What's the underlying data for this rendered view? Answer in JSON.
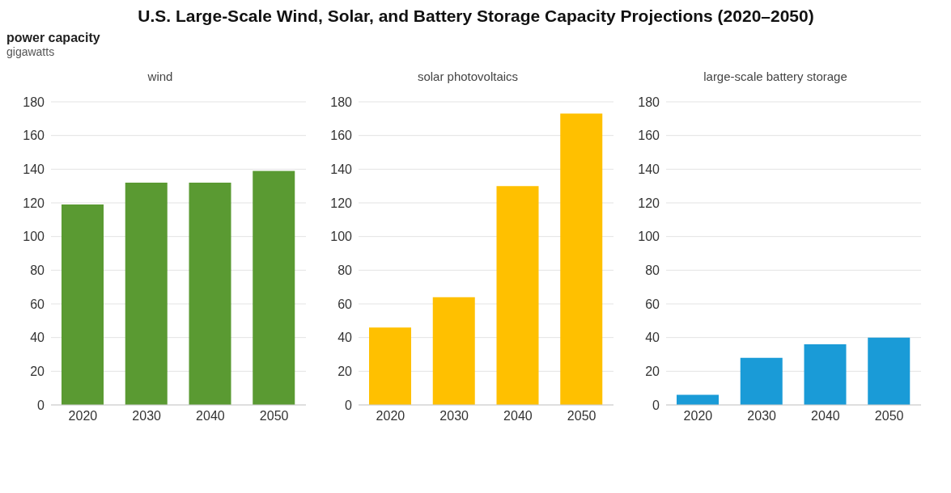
{
  "chart_data": [
    {
      "type": "bar",
      "title": "wind",
      "annotations": [
        "U.S. Large-Scale Wind, Solar, and Battery Storage Capacity Projections (2020–2050)",
        "power capacity",
        "gigawatts"
      ],
      "categories": [
        "2020",
        "2030",
        "2040",
        "2050"
      ],
      "values": [
        119,
        132,
        132,
        139
      ],
      "color": "#5a9a32",
      "ylim": [
        0,
        180
      ],
      "yticks": [
        0,
        20,
        40,
        60,
        80,
        100,
        120,
        140,
        160,
        180
      ],
      "grid": "y"
    },
    {
      "type": "bar",
      "title": "solar photovoltaics",
      "categories": [
        "2020",
        "2030",
        "2040",
        "2050"
      ],
      "values": [
        46,
        64,
        130,
        173
      ],
      "color": "#ffc000",
      "ylim": [
        0,
        180
      ],
      "yticks": [
        0,
        20,
        40,
        60,
        80,
        100,
        120,
        140,
        160,
        180
      ],
      "grid": "y"
    },
    {
      "type": "bar",
      "title": "large-scale battery storage",
      "categories": [
        "2020",
        "2030",
        "2040",
        "2050"
      ],
      "values": [
        6,
        28,
        36,
        40
      ],
      "color": "#1a9bd7",
      "ylim": [
        0,
        180
      ],
      "yticks": [
        0,
        20,
        40,
        60,
        80,
        100,
        120,
        140,
        160,
        180
      ],
      "grid": "y"
    }
  ]
}
